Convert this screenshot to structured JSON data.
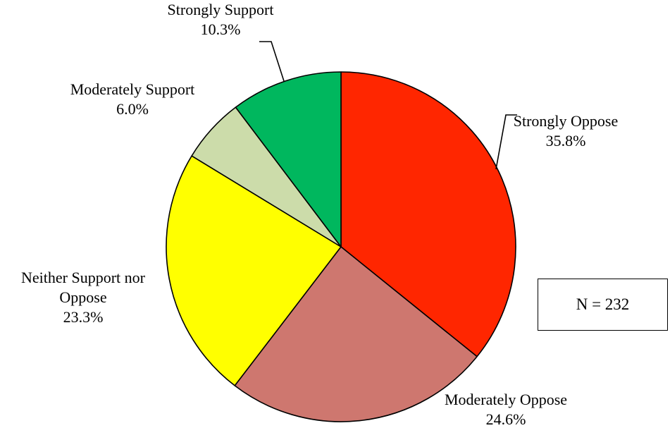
{
  "chart_data": {
    "type": "pie",
    "title": "",
    "slices": [
      {
        "label_lines": [
          "Strongly Oppose"
        ],
        "value": 35.8,
        "value_label": "35.8%",
        "color": "#FF2600"
      },
      {
        "label_lines": [
          "Moderately Oppose"
        ],
        "value": 24.6,
        "value_label": "24.6%",
        "color": "#CE776F"
      },
      {
        "label_lines": [
          "Neither Support nor",
          "Oppose"
        ],
        "value": 23.3,
        "value_label": "23.3%",
        "color": "#FFFF00"
      },
      {
        "label_lines": [
          "Moderately Support"
        ],
        "value": 6.0,
        "value_label": "6.0%",
        "color": "#CCDCAA"
      },
      {
        "label_lines": [
          "Strongly Support"
        ],
        "value": 10.3,
        "value_label": "10.3%",
        "color": "#00B75E"
      }
    ],
    "start_angle_deg": 0,
    "direction": "clockwise",
    "n_label": "N = 232"
  }
}
